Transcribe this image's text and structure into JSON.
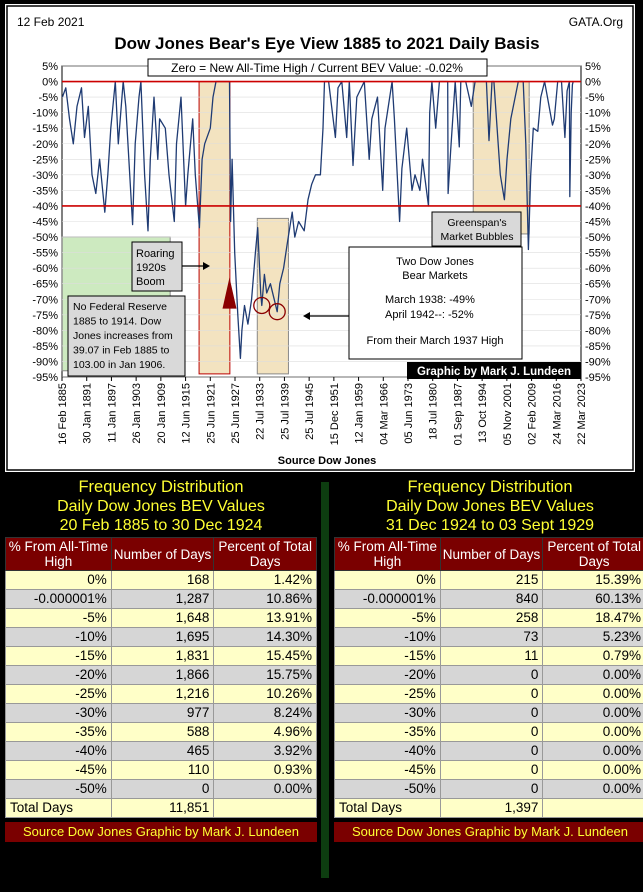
{
  "chart_data": {
    "type": "line",
    "title": "Dow Jones Bear's Eye View 1885 to 2021 Daily Basis",
    "date_label": "12 Feb 2021",
    "site_label": "GATA.Org",
    "subtitle_box": "Zero = New All-Time High / Current BEV Value: -0.02%",
    "xlabel": "Source Dow Jones",
    "ylim": [
      -95,
      5
    ],
    "yticks": [
      "5%",
      "0%",
      "-5%",
      "-10%",
      "-15%",
      "-20%",
      "-25%",
      "-30%",
      "-35%",
      "-40%",
      "-45%",
      "-50%",
      "-55%",
      "-60%",
      "-65%",
      "-70%",
      "-75%",
      "-80%",
      "-85%",
      "-90%",
      "-95%"
    ],
    "xticks": [
      "16 Feb 1885",
      "30 Jan 1891",
      "11 Jan 1897",
      "26 Jan 1903",
      "20 Jan 1909",
      "12 Jun 1915",
      "25 Jun 1921",
      "25 Jun 1927",
      "22 Jul 1933",
      "25 Jul 1939",
      "25 Jul 1945",
      "15 Dec 1951",
      "12 Jan 1959",
      "04 Mar 1966",
      "05 Jun 1973",
      "18 Jul 1980",
      "01 Sep 1987",
      "13 Oct 1994",
      "05 Nov 2001",
      "02 Feb 2009",
      "24 Mar 2016",
      "22 Mar 2023"
    ],
    "xlim_years": [
      1885,
      2023.2
    ],
    "reference_lines": [
      0,
      -40
    ],
    "series": [
      {
        "name": "Dow Jones BEV",
        "points": [
          [
            1885.1,
            -5
          ],
          [
            1886.0,
            -2
          ],
          [
            1887.0,
            -12
          ],
          [
            1888.0,
            -20
          ],
          [
            1889.0,
            -8
          ],
          [
            1890.2,
            -2
          ],
          [
            1891.0,
            -18
          ],
          [
            1892.0,
            -8
          ],
          [
            1893.0,
            -30
          ],
          [
            1894.0,
            -36
          ],
          [
            1895.0,
            -25
          ],
          [
            1896.4,
            -42
          ],
          [
            1897.2,
            -30
          ],
          [
            1898.0,
            -15
          ],
          [
            1899.2,
            0
          ],
          [
            1900.0,
            -20
          ],
          [
            1901.3,
            0
          ],
          [
            1902.0,
            -8
          ],
          [
            1903.8,
            -46
          ],
          [
            1904.5,
            -20
          ],
          [
            1905.5,
            -5
          ],
          [
            1906.0,
            0
          ],
          [
            1907.0,
            -30
          ],
          [
            1907.9,
            -48
          ],
          [
            1908.5,
            -25
          ],
          [
            1909.5,
            -5
          ],
          [
            1910.5,
            -25
          ],
          [
            1911.0,
            -12
          ],
          [
            1912.5,
            -15
          ],
          [
            1913.5,
            -30
          ],
          [
            1914.9,
            -45
          ],
          [
            1915.5,
            -20
          ],
          [
            1916.7,
            -5
          ],
          [
            1917.9,
            -40
          ],
          [
            1918.5,
            -30
          ],
          [
            1919.8,
            -12
          ],
          [
            1920.5,
            -30
          ],
          [
            1921.6,
            -47
          ],
          [
            1922.3,
            -25
          ],
          [
            1923.0,
            -20
          ],
          [
            1924.5,
            -15
          ],
          [
            1925.2,
            -5
          ],
          [
            1926.0,
            0
          ],
          [
            1927.0,
            0
          ],
          [
            1928.0,
            0
          ],
          [
            1929.6,
            0
          ],
          [
            1929.9,
            -45
          ],
          [
            1930.3,
            -25
          ],
          [
            1931.0,
            -55
          ],
          [
            1931.8,
            -75
          ],
          [
            1932.5,
            -89
          ],
          [
            1932.9,
            -80
          ],
          [
            1933.6,
            -72
          ],
          [
            1934.5,
            -78
          ],
          [
            1935.5,
            -70
          ],
          [
            1936.5,
            -55
          ],
          [
            1937.1,
            -47
          ],
          [
            1937.9,
            -68
          ],
          [
            1938.2,
            -72
          ],
          [
            1938.9,
            -62
          ],
          [
            1939.5,
            -68
          ],
          [
            1940.5,
            -65
          ],
          [
            1941.5,
            -70
          ],
          [
            1942.3,
            -74
          ],
          [
            1943.0,
            -65
          ],
          [
            1944.0,
            -60
          ],
          [
            1945.0,
            -52
          ],
          [
            1946.3,
            -42
          ],
          [
            1947.0,
            -50
          ],
          [
            1948.0,
            -45
          ],
          [
            1949.5,
            -48
          ],
          [
            1950.5,
            -38
          ],
          [
            1951.5,
            -33
          ],
          [
            1952.5,
            -30
          ],
          [
            1953.8,
            -30
          ],
          [
            1954.5,
            -15
          ],
          [
            1954.9,
            0
          ],
          [
            1955.5,
            0
          ],
          [
            1956.0,
            0
          ],
          [
            1957.8,
            -18
          ],
          [
            1958.5,
            -2
          ],
          [
            1959.5,
            0
          ],
          [
            1960.8,
            -18
          ],
          [
            1961.5,
            0
          ],
          [
            1962.5,
            -27
          ],
          [
            1963.5,
            -5
          ],
          [
            1965.5,
            0
          ],
          [
            1966.8,
            -25
          ],
          [
            1967.5,
            -12
          ],
          [
            1969.0,
            -5
          ],
          [
            1970.4,
            -35
          ],
          [
            1971.0,
            -15
          ],
          [
            1972.9,
            0
          ],
          [
            1973.5,
            -12
          ],
          [
            1974.9,
            -45
          ],
          [
            1975.5,
            -28
          ],
          [
            1976.8,
            -15
          ],
          [
            1978.2,
            -35
          ],
          [
            1979.0,
            -30
          ],
          [
            1980.3,
            -35
          ],
          [
            1981.0,
            -25
          ],
          [
            1982.6,
            -40
          ],
          [
            1982.9,
            -10
          ],
          [
            1983.5,
            0
          ],
          [
            1984.5,
            -15
          ],
          [
            1985.5,
            0
          ],
          [
            1986.0,
            0
          ],
          [
            1987.7,
            0
          ],
          [
            1987.8,
            -36
          ],
          [
            1988.5,
            -22
          ],
          [
            1989.7,
            0
          ],
          [
            1990.8,
            -21
          ],
          [
            1991.2,
            0
          ],
          [
            1992.5,
            0
          ],
          [
            1994.0,
            -8
          ],
          [
            1995.0,
            0
          ],
          [
            1998.0,
            0
          ],
          [
            1998.7,
            -19
          ],
          [
            1999.5,
            0
          ],
          [
            2000.0,
            0
          ],
          [
            2001.7,
            -30
          ],
          [
            2002.8,
            -38
          ],
          [
            2003.5,
            -25
          ],
          [
            2004.5,
            -12
          ],
          [
            2006.5,
            0
          ],
          [
            2007.8,
            0
          ],
          [
            2008.5,
            -20
          ],
          [
            2009.2,
            -54
          ],
          [
            2009.8,
            -30
          ],
          [
            2010.5,
            -15
          ],
          [
            2011.7,
            -16
          ],
          [
            2012.5,
            -5
          ],
          [
            2013.5,
            0
          ],
          [
            2015.6,
            -14
          ],
          [
            2016.1,
            -12
          ],
          [
            2017.0,
            0
          ],
          [
            2018.0,
            0
          ],
          [
            2018.9,
            -18
          ],
          [
            2019.5,
            -3
          ],
          [
            2020.1,
            0
          ],
          [
            2020.22,
            -37
          ],
          [
            2020.6,
            -10
          ],
          [
            2020.9,
            -1
          ],
          [
            2021.12,
            0
          ]
        ]
      }
    ],
    "annotations": [
      {
        "name": "roaring-twenties",
        "text": [
          "Roaring",
          "1920s",
          "Boom"
        ]
      },
      {
        "name": "greenspan",
        "text": [
          "Greenspan's",
          "Market Bubbles"
        ]
      },
      {
        "name": "two-bear-markets",
        "text": [
          "Two Dow Jones",
          "Bear Markets",
          "March 1938: -49%",
          "April 1942--: -52%",
          "From their March 1937 High"
        ]
      },
      {
        "name": "no-fed",
        "text": [
          "No Federal Reserve",
          "1885 to 1914.  Dow",
          "Jones increases from",
          "39.07 in Feb 1885  to",
          "103.00  in Jan 1906."
        ]
      },
      {
        "name": "credit",
        "text": [
          "Graphic by Mark J. Lundeen"
        ]
      }
    ]
  },
  "colors": {
    "line": "#1f3b73",
    "ref_line": "#cc0000",
    "header_bg": "#7a0000",
    "title_text": "#ffff33",
    "row_light": "#ffffc8",
    "row_gray": "#d6d6d6",
    "shade": "#f3e3c0",
    "box_green": "#cdeac0"
  },
  "tables": {
    "left": {
      "title1": "Frequency Distribution",
      "title2": "Daily Dow Jones BEV Values",
      "title3": "20 Feb 1885 to 30 Dec 1924",
      "headers": [
        "% From All-Time High",
        "Number of Days",
        "Percent of Total Days"
      ],
      "rows": [
        [
          "0%",
          "168",
          "1.42%"
        ],
        [
          "-0.000001%",
          "1,287",
          "10.86%"
        ],
        [
          "-5%",
          "1,648",
          "13.91%"
        ],
        [
          "-10%",
          "1,695",
          "14.30%"
        ],
        [
          "-15%",
          "1,831",
          "15.45%"
        ],
        [
          "-20%",
          "1,866",
          "15.75%"
        ],
        [
          "-25%",
          "1,216",
          "10.26%"
        ],
        [
          "-30%",
          "977",
          "8.24%"
        ],
        [
          "-35%",
          "588",
          "4.96%"
        ],
        [
          "-40%",
          "465",
          "3.92%"
        ],
        [
          "-45%",
          "110",
          "0.93%"
        ],
        [
          "-50%",
          "0",
          "0.00%"
        ]
      ],
      "total": [
        "Total Days",
        "11,851",
        ""
      ],
      "source": "Source Dow Jones   Graphic by Mark J. Lundeen"
    },
    "right": {
      "title1": "Frequency Distribution",
      "title2": "Daily Dow Jones BEV Values",
      "title3": "31 Dec 1924 to 03 Sept 1929",
      "headers": [
        "% From All-Time High",
        "Number of Days",
        "Percent of Total Days"
      ],
      "rows": [
        [
          "0%",
          "215",
          "15.39%"
        ],
        [
          "-0.000001%",
          "840",
          "60.13%"
        ],
        [
          "-5%",
          "258",
          "18.47%"
        ],
        [
          "-10%",
          "73",
          "5.23%"
        ],
        [
          "-15%",
          "11",
          "0.79%"
        ],
        [
          "-20%",
          "0",
          "0.00%"
        ],
        [
          "-25%",
          "0",
          "0.00%"
        ],
        [
          "-30%",
          "0",
          "0.00%"
        ],
        [
          "-35%",
          "0",
          "0.00%"
        ],
        [
          "-40%",
          "0",
          "0.00%"
        ],
        [
          "-45%",
          "0",
          "0.00%"
        ],
        [
          "-50%",
          "0",
          "0.00%"
        ]
      ],
      "total": [
        "Total Days",
        "1,397",
        ""
      ],
      "source": "Source Dow Jones   Graphic by Mark J. Lundeen"
    }
  }
}
